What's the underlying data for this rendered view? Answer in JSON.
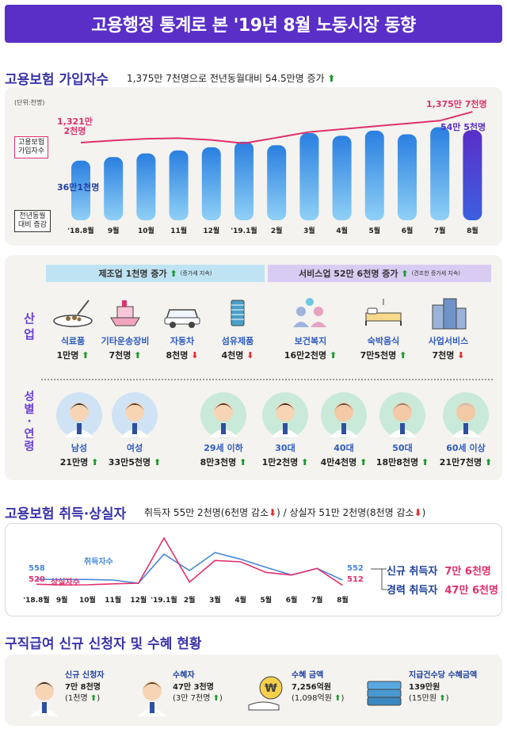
{
  "header": {
    "title": "고용행정 통계로 본 '19년 8월 노동시장 동향"
  },
  "insured": {
    "title": "고용보험 가입자수",
    "summary": "1,375만 7천명으로 전년동월대비 54.5만명 증가",
    "unit": "(단위:천명)",
    "first_line_label": "1,321만\n2천명",
    "last_line_label": "1,375만 7천명",
    "first_bar_label": "36만1천명",
    "last_bar_label": "54만 5천명",
    "legend_line": "고용보험\n가입자수",
    "legend_bar": "전년동월\n대비 증감"
  },
  "chart_data": [
    {
      "type": "bar",
      "title": "고용보험 가입자수",
      "categories": [
        "'18.8월",
        "9월",
        "10월",
        "11월",
        "12월",
        "'19.1월",
        "2월",
        "3월",
        "4월",
        "5월",
        "6월",
        "7월",
        "8월"
      ],
      "series": [
        {
          "name": "전년동월 대비 증감",
          "values": [
            361,
            383,
            405,
            423,
            442,
            476,
            455,
            528,
            512,
            543,
            521,
            564,
            545
          ]
        },
        {
          "name": "고용보험 가입자수",
          "values": [
            13212,
            13250,
            13280,
            13290,
            13260,
            13200,
            13300,
            13400,
            13450,
            13500,
            13550,
            13600,
            13757
          ]
        }
      ]
    },
    {
      "type": "line",
      "title": "고용보험 취득·상실자",
      "categories": [
        "'18.8월",
        "9월",
        "10월",
        "11월",
        "12월",
        "'19.1월",
        "2월",
        "3월",
        "4월",
        "5월",
        "6월",
        "7월",
        "8월"
      ],
      "series": [
        {
          "name": "취득자수",
          "values": [
            558,
            556,
            556,
            552,
            528,
            748,
            624,
            760,
            710,
            648,
            590,
            640,
            552
          ]
        },
        {
          "name": "상실자수",
          "values": [
            520,
            515,
            516,
            523,
            528,
            870,
            536,
            700,
            690,
            610,
            590,
            640,
            512
          ]
        }
      ],
      "first_labels": {
        "acq": "558",
        "loss": "520"
      },
      "last_labels": {
        "acq": "552",
        "loss": "512"
      }
    }
  ],
  "industry": {
    "label": "산\n업",
    "banner_mfg": "제조업 1천명 증가",
    "banner_mfg_note": "(증가세 지속)",
    "banner_svc": "서비스업 52만 6천명 증가",
    "banner_svc_note": "(견조한 증가세 지속)",
    "items": [
      {
        "name": "식료품",
        "value": "1만명",
        "dir": "up",
        "icon": "food-icon"
      },
      {
        "name": "기타운송장비",
        "value": "7천명",
        "dir": "up",
        "icon": "ship-icon"
      },
      {
        "name": "자동차",
        "value": "8천명",
        "dir": "down",
        "icon": "car-icon"
      },
      {
        "name": "섬유제품",
        "value": "4천명",
        "dir": "down",
        "icon": "thread-icon"
      },
      {
        "name": "보건복지",
        "value": "16만2천명",
        "dir": "up",
        "icon": "family-icon"
      },
      {
        "name": "숙박음식",
        "value": "7만5천명",
        "dir": "up",
        "icon": "bed-icon"
      },
      {
        "name": "사업서비스",
        "value": "7천명",
        "dir": "down",
        "icon": "building-icon"
      }
    ]
  },
  "demo": {
    "label": "성\n별\n·\n연\n령",
    "people": [
      {
        "name": "남성",
        "value": "21만명",
        "dir": "up",
        "icon": "man-icon"
      },
      {
        "name": "여성",
        "value": "33만5천명",
        "dir": "up",
        "icon": "woman-icon"
      },
      {
        "name": "29세 이하",
        "value": "8만3천명",
        "dir": "up",
        "icon": "young-man-icon"
      },
      {
        "name": "30대",
        "value": "1만2천명",
        "dir": "up",
        "icon": "thirties-woman-icon"
      },
      {
        "name": "40대",
        "value": "4만4천명",
        "dir": "up",
        "icon": "forties-man-icon"
      },
      {
        "name": "50대",
        "value": "18만8천명",
        "dir": "up",
        "icon": "fifties-woman-icon"
      },
      {
        "name": "60세 이상",
        "value": "21만7천명",
        "dir": "up",
        "icon": "elder-man-icon"
      }
    ]
  },
  "flows": {
    "title": "고용보험 취득·상실자",
    "summary_a": "취득자 55만 2천명(6천명 감소",
    "summary_b": ") / 상실자 51만 2천명(8천명 감소",
    "summary_c": ")",
    "acq_label": "취득자수",
    "loss_label": "상실자수",
    "new_label": "신규 취득자",
    "new_value": "7만 6천명",
    "career_label": "경력 취득자",
    "career_value": "47만 6천명"
  },
  "benefits": {
    "title": "구직급여 신규 신청자 및 수혜 현황",
    "items": [
      {
        "title": "신규 신청자",
        "value": "7만 8천명",
        "sub": "(1천명",
        "icon": "applicant-icon"
      },
      {
        "title": "수혜자",
        "value": "47만 3천명",
        "sub": "(3만 7천명",
        "icon": "recipient-icon"
      },
      {
        "title": "수혜 금액",
        "value": "7,256억원",
        "sub": "(1,098억원",
        "icon": "money-hand-icon"
      },
      {
        "title": "지급건수당 수혜금액",
        "value": "139만원",
        "sub": "(15만원",
        "icon": "cash-stack-icon"
      }
    ]
  },
  "colors": {
    "purple": "#5a2fc8",
    "pink": "#e0306e",
    "blue": "#2f87e0",
    "green": "#1c9a2e",
    "red": "#e03030"
  }
}
